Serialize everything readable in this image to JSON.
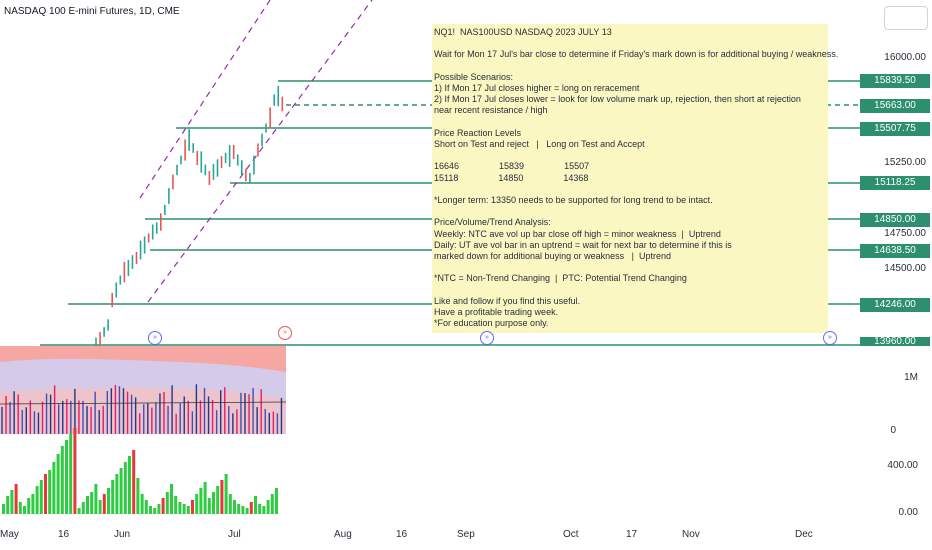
{
  "title": "NASDAQ 100 E-mini Futures, 1D, CME",
  "note": {
    "lines": [
      "NQ1!  NAS100USD NASDAQ 2023 JULY 13",
      "",
      "Wait for Mon 17 Jul's bar close to determine if Friday's mark down is for additional buying / weakness.",
      "",
      "Possible Scenarios:",
      "1) If Mon 17 Jul closes higher = long on reracement",
      "2) If Mon 17 Jul closes lower = look for low volume mark up, rejection, then short at rejection",
      "near recent resistance / high",
      "",
      "Price Reaction Levels",
      "Short on Test and reject   |   Long on Test and Accept",
      "",
      "16646                15839                15507",
      "15118                14850                14368",
      "",
      "*Longer term: 13350 needs to be supported for long trend to be intact.",
      "",
      "Price/Volume/Trend Analysis:",
      "Weekly: NTC ave vol up bar close off high = minor weakness  |  Uptrend",
      "Daily: UT ave vol bar in an uptrend = wait for next bar to determine if this is",
      "marked down for additional buying or weakness   |  Uptrend",
      "",
      "*NTC = Non-Trend Changing  |  PTC: Potential Trend Changing",
      "",
      "Like and follow if you find this useful.",
      "Have a profitable trading week.",
      "*For education purpose only."
    ]
  },
  "price_axis": {
    "labels": [
      "16000.00",
      "15250.00",
      "14750.00",
      "14500.00"
    ],
    "tags": [
      "15839.50",
      "15663.00",
      "15507.75",
      "15118.25",
      "14850.00",
      "14638.50",
      "14246.00",
      "13960.00"
    ]
  },
  "volume_axis": {
    "labels": [
      "1M",
      "0"
    ]
  },
  "osc_axis": {
    "labels": [
      "400.00",
      "0.00"
    ]
  },
  "time_axis": {
    "labels": [
      "May",
      "16",
      "Jun",
      "Jul",
      "Aug",
      "16",
      "Sep",
      "Oct",
      "17",
      "Nov",
      "Dec"
    ]
  },
  "colors": {
    "up": "#26a69a",
    "down": "#ef5350",
    "level_line": "#2d8f6d",
    "channel": "#9c27b0",
    "note_bg": "#fbf7c3"
  },
  "icons": {
    "top_right": "chart-settings-icon",
    "event_marker": "double-chevron-icon"
  }
}
